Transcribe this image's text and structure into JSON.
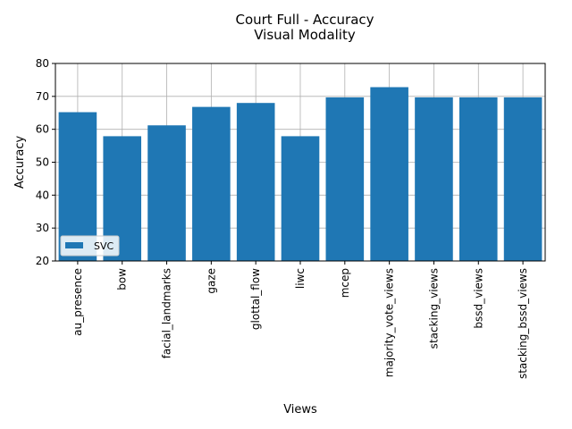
{
  "chart_data": {
    "type": "bar",
    "title": "Court Full - Accuracy",
    "subtitle": "Visual Modality",
    "xlabel": "Views",
    "ylabel": "Accuracy",
    "ylim": [
      20,
      80
    ],
    "yticks": [
      20,
      30,
      40,
      50,
      60,
      70,
      80
    ],
    "grid": true,
    "legend_position": "lower-left",
    "categories": [
      "au_presence",
      "bow",
      "facial_landmarks",
      "gaze",
      "glottal_flow",
      "liwc",
      "mcep",
      "majority_vote_views",
      "stacking_views",
      "bssd_views",
      "stacking_bssd_views"
    ],
    "series": [
      {
        "name": "SVC",
        "color": "#1f77b4",
        "values": [
          65.2,
          57.9,
          61.2,
          66.8,
          68.0,
          57.9,
          69.7,
          72.8,
          69.7,
          69.7,
          69.7
        ]
      }
    ]
  }
}
